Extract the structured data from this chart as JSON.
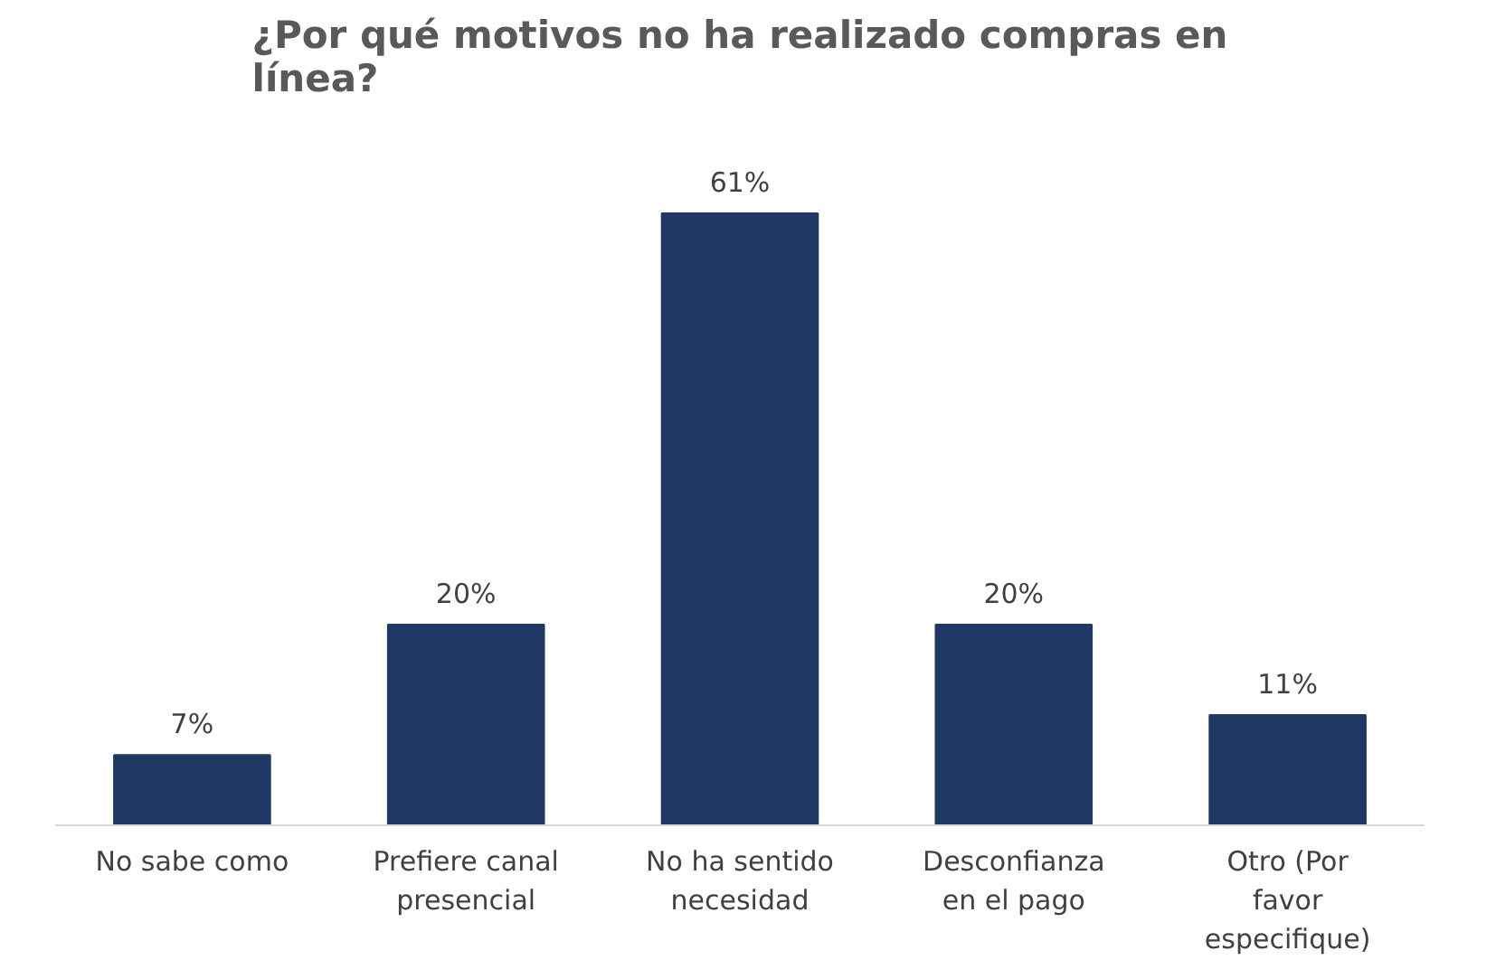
{
  "chart_data": {
    "type": "bar",
    "title": "¿Por qué motivos no ha realizado compras en línea?",
    "categories": [
      "No sabe como",
      "Prefiere canal presencial",
      "No ha sentido necesidad",
      "Desconfianza en el pago",
      "Otro (Por favor especifique)"
    ],
    "values": [
      7,
      20,
      61,
      20,
      11
    ],
    "value_labels": [
      "7%",
      "20%",
      "61%",
      "20%",
      "11%"
    ],
    "color": "#1f3864",
    "grid": false
  }
}
